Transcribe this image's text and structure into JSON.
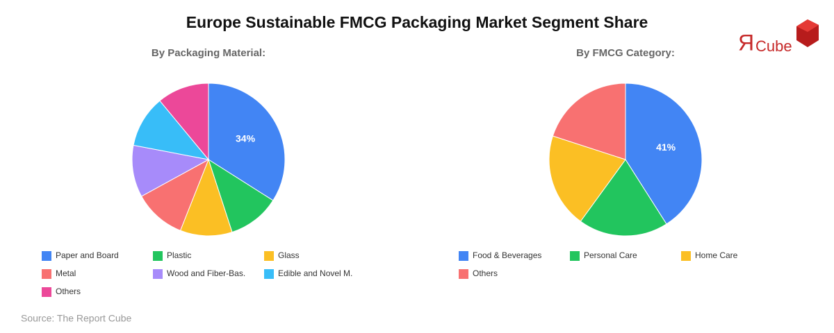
{
  "title": "Europe Sustainable FMCG Packaging Market Segment Share",
  "logo": {
    "mark": "Я",
    "text": "Cube"
  },
  "source": "Source: The Report Cube",
  "chart_data": [
    {
      "type": "pie",
      "subtitle": "By Packaging Material:",
      "categories": [
        "Paper and Board",
        "Plastic",
        "Glass",
        "Metal",
        "Wood and Fiber-Bas.",
        "Edible and Novel M.",
        "Others"
      ],
      "values": [
        34,
        11,
        11,
        11,
        11,
        11,
        11
      ],
      "value_labels": [
        "34%",
        null,
        null,
        null,
        null,
        null,
        null
      ],
      "colors": [
        "#4285f4",
        "#22c55e",
        "#fbbf24",
        "#f87171",
        "#a78bfa",
        "#38bdf8",
        "#ec4899"
      ]
    },
    {
      "type": "pie",
      "subtitle": "By FMCG Category:",
      "categories": [
        "Food & Beverages",
        "Personal Care",
        "Home Care",
        "Others"
      ],
      "values": [
        41,
        19,
        20,
        20
      ],
      "value_labels": [
        "41%",
        null,
        null,
        null
      ],
      "colors": [
        "#4285f4",
        "#22c55e",
        "#fbbf24",
        "#f87171"
      ]
    }
  ]
}
